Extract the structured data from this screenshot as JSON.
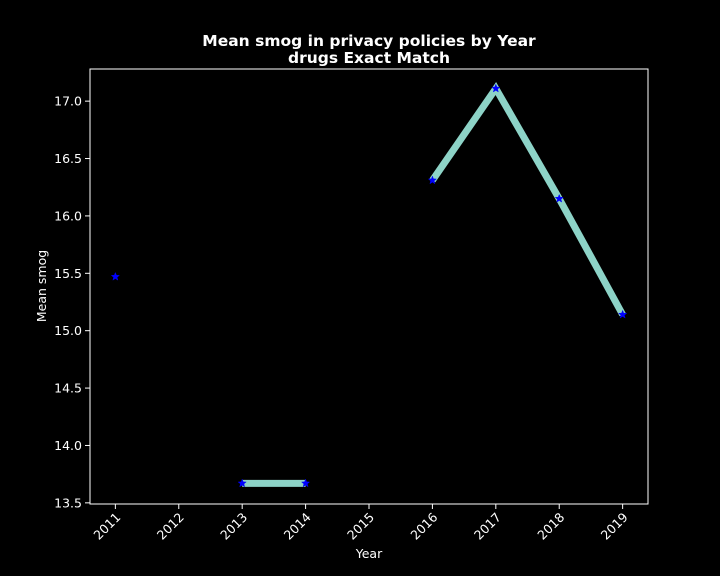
{
  "chart_data": {
    "type": "line",
    "title": "Mean smog in privacy policies by Year",
    "subtitle": "drugs Exact Match",
    "xlabel": "Year",
    "ylabel": "Mean smog",
    "x_ticks": [
      "2011",
      "2012",
      "2013",
      "2014",
      "2015",
      "2016",
      "2017",
      "2018",
      "2019"
    ],
    "y_ticks": [
      "13.5",
      "14.0",
      "14.5",
      "15.0",
      "15.5",
      "16.0",
      "16.5",
      "17.0"
    ],
    "ylim": [
      13.49,
      17.28
    ],
    "xlim": [
      2010.6,
      2019.4
    ],
    "grid": false,
    "series": [
      {
        "points": [
          {
            "x": 2011,
            "y": 15.47
          },
          {
            "x": 2012,
            "y": null
          },
          {
            "x": 2013,
            "y": 13.67
          },
          {
            "x": 2014,
            "y": 13.67
          },
          {
            "x": 2015,
            "y": null
          },
          {
            "x": 2016,
            "y": 16.31
          },
          {
            "x": 2017,
            "y": 17.11
          },
          {
            "x": 2018,
            "y": 16.15
          },
          {
            "x": 2019,
            "y": 15.14
          }
        ],
        "line_color": "#8dd3c7",
        "marker_color": "#0000ff",
        "marker": "star"
      }
    ]
  }
}
